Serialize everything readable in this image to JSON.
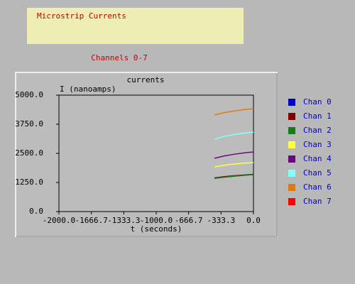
{
  "header": {
    "title": "Microstrip Currents",
    "subtitle": "Channels 0-7"
  },
  "chart_data": {
    "type": "line",
    "title": "currents",
    "y_label": "I (nanoamps)",
    "x_label": "t (seconds)",
    "x": [
      -400,
      -300,
      -200,
      -100,
      0
    ],
    "xlim": [
      -2000,
      0
    ],
    "xticks": [
      {
        "value": -2000,
        "label": "-2000.0"
      },
      {
        "value": -1666.7,
        "label": "-1666.7"
      },
      {
        "value": -1333.3,
        "label": "-1333.3"
      },
      {
        "value": -1000,
        "label": "-1000.0"
      },
      {
        "value": -666.7,
        "label": "-666.7"
      },
      {
        "value": -333.3,
        "label": "-333.3"
      },
      {
        "value": 0,
        "label": "0.0"
      }
    ],
    "ylim": [
      0,
      5000
    ],
    "yticks": [
      {
        "value": 0,
        "label": "0.0"
      },
      {
        "value": 1250,
        "label": "1250.0"
      },
      {
        "value": 2500,
        "label": "2500.0"
      },
      {
        "value": 3750,
        "label": "3750.0"
      },
      {
        "value": 5000,
        "label": "5000.0"
      }
    ],
    "legend": "right",
    "series": [
      {
        "name": "Chan 0",
        "color": "#0000cc",
        "values": [
          1430,
          1480,
          1520,
          1560,
          1590
        ]
      },
      {
        "name": "Chan 1",
        "color": "#800000",
        "values": [
          1450,
          1500,
          1540,
          1570,
          1600
        ]
      },
      {
        "name": "Chan 2",
        "color": "#1a7a1a",
        "values": [
          1430,
          1480,
          1520,
          1560,
          1590
        ]
      },
      {
        "name": "Chan 3",
        "color": "#ffff44",
        "values": [
          1920,
          1990,
          2040,
          2080,
          2100
        ]
      },
      {
        "name": "Chan 4",
        "color": "#6a0a7a",
        "values": [
          2290,
          2390,
          2460,
          2520,
          2560
        ]
      },
      {
        "name": "Chan 5",
        "color": "#88ffff",
        "values": [
          3110,
          3230,
          3310,
          3370,
          3410
        ]
      },
      {
        "name": "Chan 6",
        "color": "#e07a10",
        "values": [
          4150,
          4250,
          4320,
          4380,
          4420
        ]
      },
      {
        "name": "Chan 7",
        "color": "#ff0000",
        "values": [
          null,
          null,
          null,
          null,
          null
        ]
      }
    ]
  }
}
